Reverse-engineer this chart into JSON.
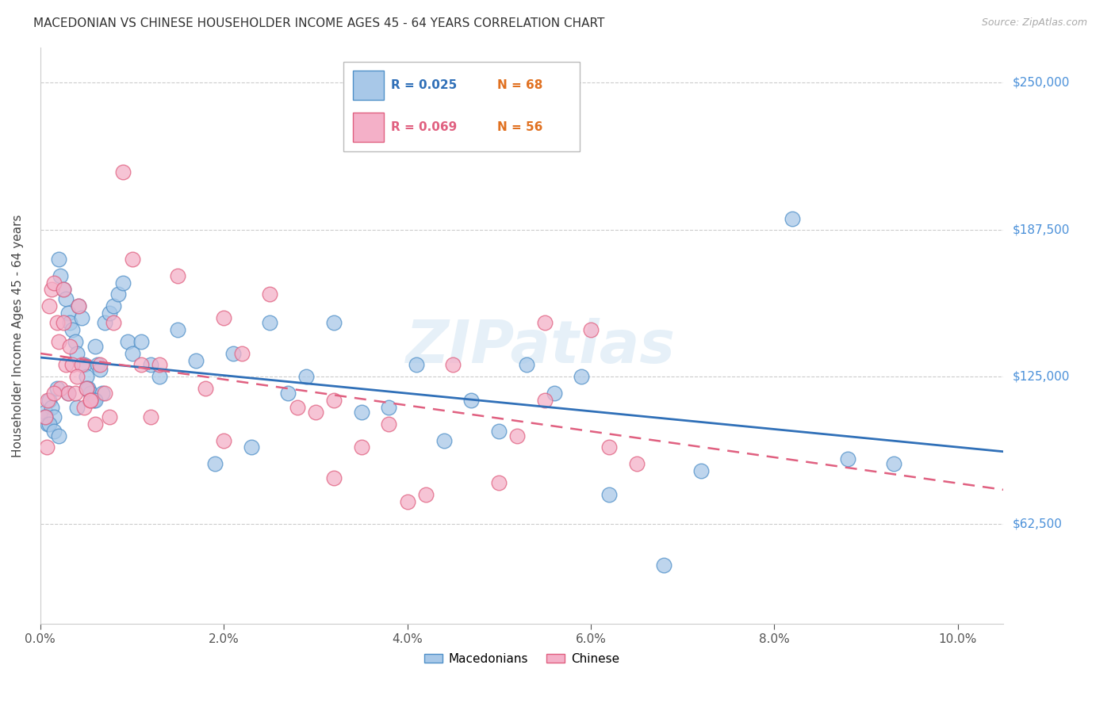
{
  "title": "MACEDONIAN VS CHINESE HOUSEHOLDER INCOME AGES 45 - 64 YEARS CORRELATION CHART",
  "source": "Source: ZipAtlas.com",
  "xlabel_vals": [
    0.0,
    2.0,
    4.0,
    6.0,
    8.0,
    10.0
  ],
  "ylabel_vals": [
    62500,
    125000,
    187500,
    250000
  ],
  "ylabel_labels": [
    "$62,500",
    "$125,000",
    "$187,500",
    "$250,000"
  ],
  "xlim": [
    0.0,
    10.5
  ],
  "ylim": [
    20000,
    265000
  ],
  "mac_color": "#a8c8e8",
  "chi_color": "#f4b0c8",
  "mac_edge_color": "#5090c8",
  "chi_edge_color": "#e06080",
  "mac_line_color": "#3070b8",
  "chi_line_color": "#e06080",
  "watermark": "ZIPatlas",
  "mac_x": [
    0.05,
    0.08,
    0.1,
    0.12,
    0.15,
    0.18,
    0.2,
    0.22,
    0.25,
    0.28,
    0.3,
    0.32,
    0.35,
    0.38,
    0.4,
    0.42,
    0.45,
    0.48,
    0.5,
    0.52,
    0.55,
    0.58,
    0.6,
    0.62,
    0.65,
    0.68,
    0.7,
    0.75,
    0.8,
    0.85,
    0.9,
    0.95,
    1.0,
    1.1,
    1.2,
    1.3,
    1.5,
    1.7,
    1.9,
    2.1,
    2.3,
    2.5,
    2.7,
    2.9,
    3.2,
    3.5,
    3.8,
    4.1,
    4.4,
    4.7,
    5.0,
    5.3,
    5.6,
    5.9,
    6.2,
    6.8,
    7.2,
    8.2,
    8.8,
    9.3,
    0.05,
    0.1,
    0.15,
    0.2,
    0.3,
    0.4,
    0.5,
    0.6
  ],
  "mac_y": [
    110000,
    105000,
    115000,
    112000,
    108000,
    120000,
    175000,
    168000,
    162000,
    158000,
    152000,
    148000,
    145000,
    140000,
    135000,
    155000,
    150000,
    130000,
    125000,
    120000,
    118000,
    115000,
    138000,
    130000,
    128000,
    118000,
    148000,
    152000,
    155000,
    160000,
    165000,
    140000,
    135000,
    140000,
    130000,
    125000,
    145000,
    132000,
    88000,
    135000,
    95000,
    148000,
    118000,
    125000,
    148000,
    110000,
    112000,
    130000,
    98000,
    115000,
    102000,
    130000,
    118000,
    125000,
    75000,
    45000,
    85000,
    192000,
    90000,
    88000,
    108000,
    105000,
    102000,
    100000,
    118000,
    112000,
    120000,
    115000
  ],
  "chi_x": [
    0.05,
    0.07,
    0.1,
    0.12,
    0.15,
    0.18,
    0.2,
    0.22,
    0.25,
    0.28,
    0.3,
    0.32,
    0.35,
    0.38,
    0.42,
    0.45,
    0.48,
    0.5,
    0.55,
    0.6,
    0.65,
    0.7,
    0.8,
    0.9,
    1.0,
    1.1,
    1.3,
    1.5,
    1.8,
    2.0,
    2.2,
    2.5,
    2.8,
    3.0,
    3.2,
    3.5,
    3.8,
    4.0,
    4.2,
    4.5,
    5.0,
    5.2,
    5.5,
    6.0,
    6.5,
    0.08,
    0.15,
    0.25,
    0.4,
    0.55,
    0.75,
    1.2,
    2.0,
    3.2,
    5.5,
    6.2
  ],
  "chi_y": [
    108000,
    95000,
    155000,
    162000,
    165000,
    148000,
    140000,
    120000,
    148000,
    130000,
    118000,
    138000,
    130000,
    118000,
    155000,
    130000,
    112000,
    120000,
    115000,
    105000,
    130000,
    118000,
    148000,
    212000,
    175000,
    130000,
    130000,
    168000,
    120000,
    150000,
    135000,
    160000,
    112000,
    110000,
    115000,
    95000,
    105000,
    72000,
    75000,
    130000,
    80000,
    100000,
    148000,
    145000,
    88000,
    115000,
    118000,
    162000,
    125000,
    115000,
    108000,
    108000,
    98000,
    82000,
    115000,
    95000
  ]
}
